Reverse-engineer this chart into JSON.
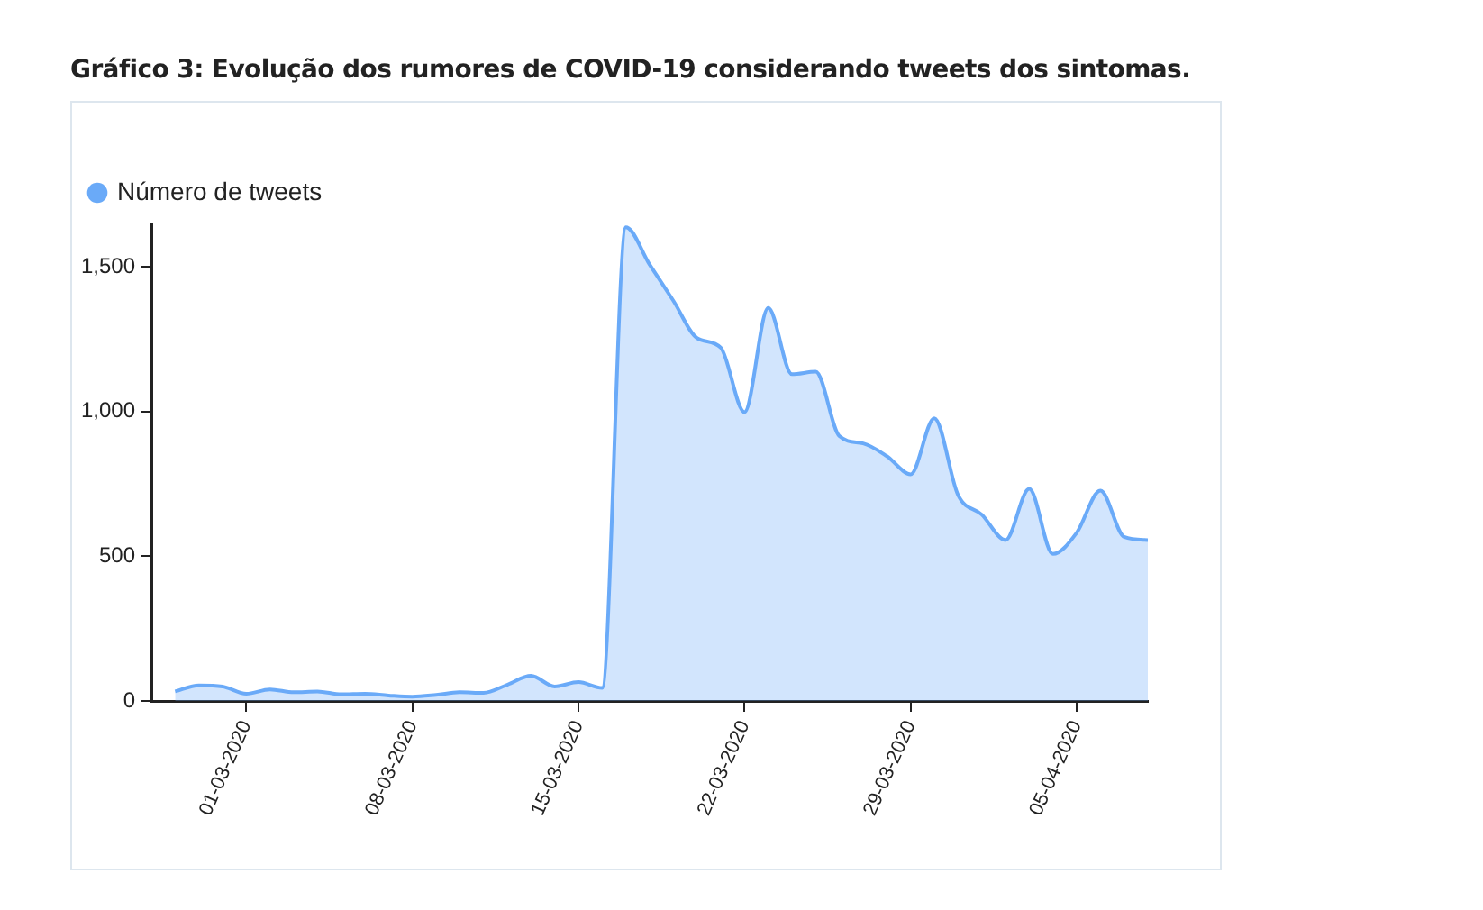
{
  "chart_data": {
    "type": "area",
    "title": "Gráfico 3: Evolução dos rumores de COVID-19 considerando tweets dos sintomas.",
    "x": [
      "2020-02-27",
      "2020-02-28",
      "2020-02-29",
      "2020-03-01",
      "2020-03-02",
      "2020-03-03",
      "2020-03-04",
      "2020-03-05",
      "2020-03-06",
      "2020-03-07",
      "2020-03-08",
      "2020-03-09",
      "2020-03-10",
      "2020-03-11",
      "2020-03-12",
      "2020-03-13",
      "2020-03-14",
      "2020-03-15",
      "2020-03-16",
      "2020-03-17",
      "2020-03-18",
      "2020-03-19",
      "2020-03-20",
      "2020-03-21",
      "2020-03-22",
      "2020-03-23",
      "2020-03-24",
      "2020-03-25",
      "2020-03-26",
      "2020-03-27",
      "2020-03-28",
      "2020-03-29",
      "2020-03-30",
      "2020-03-31",
      "2020-04-01",
      "2020-04-02",
      "2020-04-03",
      "2020-04-04",
      "2020-04-05",
      "2020-04-06",
      "2020-04-07",
      "2020-04-08"
    ],
    "series": [
      {
        "name": "Número de tweets",
        "color": "#6aaaf8",
        "values": [
          33,
          54,
          50,
          25,
          40,
          30,
          33,
          23,
          25,
          19,
          15,
          21,
          30,
          28,
          56,
          87,
          50,
          65,
          45,
          1637,
          1508,
          1383,
          1254,
          1221,
          998,
          1358,
          1129,
          1138,
          915,
          890,
          846,
          783,
          977,
          712,
          644,
          556,
          733,
          508,
          581,
          727,
          567,
          556
        ]
      }
    ],
    "xlim": [
      "2020-02-26",
      "2020-04-08"
    ],
    "xticks": [
      {
        "value": "2020-03-01",
        "label": "01-03-2020"
      },
      {
        "value": "2020-03-08",
        "label": "08-03-2020"
      },
      {
        "value": "2020-03-15",
        "label": "15-03-2020"
      },
      {
        "value": "2020-03-22",
        "label": "22-03-2020"
      },
      {
        "value": "2020-03-29",
        "label": "29-03-2020"
      },
      {
        "value": "2020-04-05",
        "label": "05-04-2020"
      }
    ],
    "ylim": [
      0,
      1650
    ],
    "yticks": [
      0,
      500,
      {
        "value": 1000,
        "label": "1,000"
      },
      {
        "value": 1500,
        "label": "1,500"
      }
    ],
    "grid": false,
    "legend": "top left",
    "marker": "none",
    "line_style": "solid"
  }
}
